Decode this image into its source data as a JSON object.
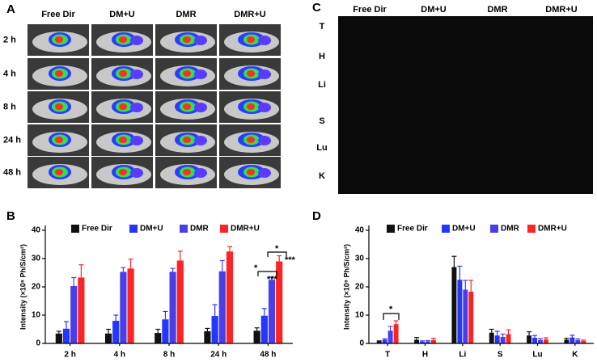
{
  "images": [
    {
      "panel_label": "A",
      "columns": [
        "Free Dir",
        "DM+U",
        "DMR",
        "DMR+U"
      ],
      "rows": [
        "2 h",
        "4 h",
        "8 h",
        "24 h",
        "48 h"
      ]
    },
    {
      "panel_label": "C",
      "columns": [
        "Free Dir",
        "DM+U",
        "DMR",
        "DMR+U"
      ],
      "rows": [
        "T",
        "H",
        "Li",
        "S",
        "Lu",
        "K"
      ]
    }
  ],
  "chart_data": [
    {
      "type": "bar",
      "panel_label": "B",
      "y_label": "Intensity (×10⁸ Ph/S/cm²)",
      "categories": [
        "2 h",
        "4 h",
        "8 h",
        "24 h",
        "48 h"
      ],
      "ylim": [
        0,
        40
      ],
      "yticks": [
        0,
        10,
        20,
        30,
        40
      ],
      "series": [
        {
          "name": "Free Dir",
          "color": "#111111",
          "values": [
            3.5,
            3.5,
            3.7,
            4.3,
            4.5
          ],
          "errors": [
            0.8,
            1.5,
            1.3,
            1.0,
            1.0
          ]
        },
        {
          "name": "DM+U",
          "color": "#2436ff",
          "values": [
            5.2,
            8,
            8.5,
            9.7,
            9.8
          ],
          "errors": [
            2.5,
            2,
            2.8,
            4,
            2.5
          ]
        },
        {
          "name": "DMR",
          "color": "#4a3ee8",
          "values": [
            20.3,
            25.3,
            25.3,
            25.5,
            22.5
          ],
          "errors": [
            3,
            1.5,
            1.2,
            3.8,
            1
          ]
        },
        {
          "name": "DMR+U",
          "color": "#ff2424",
          "values": [
            23.3,
            26.5,
            29.3,
            32.5,
            29
          ],
          "errors": [
            4.5,
            3.3,
            3.3,
            1.7,
            2
          ]
        }
      ],
      "annotations": [
        "*",
        "***",
        "*",
        "***"
      ]
    },
    {
      "type": "bar",
      "panel_label": "D",
      "y_label": "Intensity (×10⁸ Ph/S/cm²)",
      "categories": [
        "T",
        "H",
        "Li",
        "S",
        "Lu",
        "K"
      ],
      "ylim": [
        0,
        40
      ],
      "yticks": [
        0,
        10,
        20,
        30,
        40
      ],
      "series": [
        {
          "name": "Free Dir",
          "color": "#111111",
          "values": [
            0.7,
            1.3,
            27,
            3.8,
            2.8,
            1.3
          ],
          "errors": [
            0.2,
            0.8,
            3.8,
            1.2,
            1.3,
            0.5
          ]
        },
        {
          "name": "DM+U",
          "color": "#2436ff",
          "values": [
            1.3,
            0.6,
            22.5,
            2.8,
            2,
            2.1
          ],
          "errors": [
            0.3,
            0.3,
            4.8,
            1.5,
            0.8,
            0.8
          ]
        },
        {
          "name": "DMR",
          "color": "#4a3ee8",
          "values": [
            4.5,
            0.7,
            19,
            2.3,
            1.2,
            1.2
          ],
          "errors": [
            1.5,
            0.3,
            3.3,
            1,
            0.5,
            0.4
          ]
        },
        {
          "name": "DMR+U",
          "color": "#ff2424",
          "values": [
            6.8,
            1.2,
            18.3,
            3.3,
            1.4,
            0.9
          ],
          "errors": [
            1.2,
            0.6,
            4,
            1.5,
            0.6,
            0.3
          ]
        }
      ],
      "annotations": [
        "*"
      ]
    }
  ]
}
